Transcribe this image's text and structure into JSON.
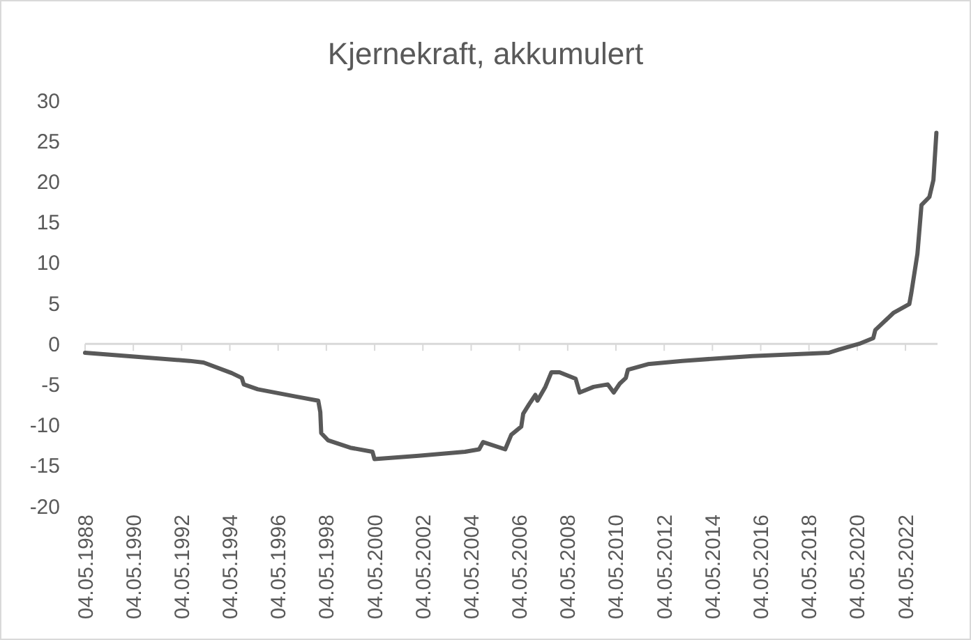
{
  "chart_data": {
    "type": "line",
    "title": "Kjernekraft, akkumulert",
    "xlim": [
      "1988-05-04",
      "2023-09-01"
    ],
    "xticks": [
      {
        "value": "1988-05-04",
        "label": "04.05.1988"
      },
      {
        "value": "1990-05-04",
        "label": "04.05.1990"
      },
      {
        "value": "1992-05-04",
        "label": "04.05.1992"
      },
      {
        "value": "1994-05-04",
        "label": "04.05.1994"
      },
      {
        "value": "1996-05-04",
        "label": "04.05.1996"
      },
      {
        "value": "1998-05-04",
        "label": "04.05.1998"
      },
      {
        "value": "2000-05-04",
        "label": "04.05.2000"
      },
      {
        "value": "2002-05-04",
        "label": "04.05.2002"
      },
      {
        "value": "2004-05-04",
        "label": "04.05.2004"
      },
      {
        "value": "2006-05-04",
        "label": "04.05.2006"
      },
      {
        "value": "2008-05-04",
        "label": "04.05.2008"
      },
      {
        "value": "2010-05-04",
        "label": "04.05.2010"
      },
      {
        "value": "2012-05-04",
        "label": "04.05.2012"
      },
      {
        "value": "2014-05-04",
        "label": "04.05.2014"
      },
      {
        "value": "2016-05-04",
        "label": "04.05.2016"
      },
      {
        "value": "2018-05-04",
        "label": "04.05.2018"
      },
      {
        "value": "2020-05-04",
        "label": "04.05.2020"
      },
      {
        "value": "2022-05-04",
        "label": "04.05.2022"
      }
    ],
    "ylim": [
      -20,
      30
    ],
    "yticks": [
      -20,
      -15,
      -10,
      -5,
      0,
      5,
      10,
      15,
      20,
      25,
      30
    ],
    "marker": "none",
    "line_style": "solid",
    "series": [
      {
        "color": "#595959",
        "x": [
          "1988-05-04",
          "1992-09-01",
          "1993-04-01",
          "1994-06-01",
          "1994-11-01",
          "1994-12-01",
          "1995-07-01",
          "1997-02-01",
          "1998-01-01",
          "1998-02-01",
          "1998-02-15",
          "1998-06-01",
          "1999-05-01",
          "2000-04-01",
          "2000-05-01",
          "2002-03-01",
          "2004-02-01",
          "2004-09-01",
          "2004-11-01",
          "2005-10-01",
          "2006-01-01",
          "2006-06-01",
          "2006-07-01",
          "2006-10-01",
          "2007-01-01",
          "2007-02-01",
          "2007-06-01",
          "2007-09-01",
          "2008-01-01",
          "2008-09-01",
          "2008-11-01",
          "2009-06-01",
          "2010-01-01",
          "2010-04-01",
          "2010-07-01",
          "2010-10-01",
          "2010-11-01",
          "2011-09-01",
          "2013-02-01",
          "2016-01-01",
          "2019-03-01",
          "2019-08-01",
          "2020-06-01",
          "2021-01-01",
          "2021-02-01",
          "2021-11-01",
          "2022-07-01",
          "2022-08-01",
          "2022-11-01",
          "2023-01-01",
          "2023-05-01",
          "2023-07-01",
          "2023-08-15"
        ],
        "values": [
          -1.1,
          -2.1,
          -2.3,
          -3.6,
          -4.2,
          -5.0,
          -5.6,
          -6.5,
          -7.0,
          -8.4,
          -11.0,
          -11.9,
          -12.8,
          -13.3,
          -14.2,
          -13.8,
          -13.3,
          -13.0,
          -12.1,
          -13.0,
          -11.2,
          -10.2,
          -8.6,
          -7.4,
          -6.3,
          -7.0,
          -5.3,
          -3.5,
          -3.5,
          -4.3,
          -6.0,
          -5.3,
          -5.0,
          -6.0,
          -4.9,
          -4.2,
          -3.2,
          -2.5,
          -2.1,
          -1.5,
          -1.1,
          -0.7,
          0.0,
          0.7,
          1.7,
          3.8,
          4.9,
          6.3,
          11.1,
          17.1,
          18.1,
          20.2,
          26.0
        ]
      }
    ]
  }
}
